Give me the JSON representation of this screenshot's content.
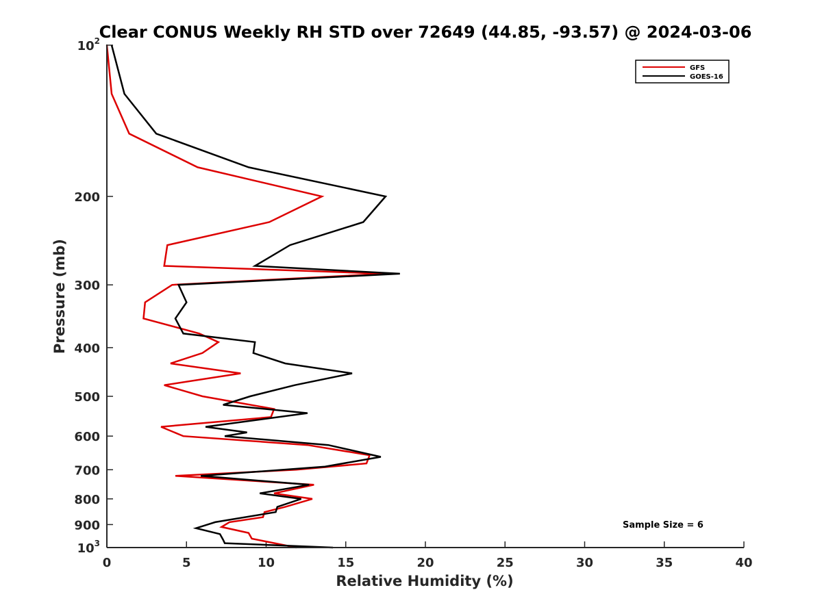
{
  "chart_data": {
    "type": "line",
    "title": "Clear CONUS Weekly RH STD over 72649 (44.85, -93.57) @ 2024-03-06",
    "xlabel": "Relative Humidity (%)",
    "ylabel": "Pressure (mb)",
    "xlim": [
      0,
      40
    ],
    "ylim": [
      100,
      1000
    ],
    "y_scale": "log",
    "y_reversed": true,
    "x_ticks": [
      "0",
      "5",
      "10",
      "15",
      "20",
      "25",
      "30",
      "35",
      "40"
    ],
    "y_ticks": [
      {
        "value": 100,
        "base": "10",
        "exp": "2"
      },
      {
        "value": 200,
        "label": "200"
      },
      {
        "value": 300,
        "label": "300"
      },
      {
        "value": 400,
        "label": "400"
      },
      {
        "value": 500,
        "label": "500"
      },
      {
        "value": 600,
        "label": "600"
      },
      {
        "value": 700,
        "label": "700"
      },
      {
        "value": 800,
        "label": "800"
      },
      {
        "value": 900,
        "label": "900"
      },
      {
        "value": 1000,
        "base": "10",
        "exp": "3"
      }
    ],
    "grid": false,
    "legend_position": "top-right",
    "annotation": "Sample Size = 6",
    "series": [
      {
        "name": "GFS",
        "color": "#dd0000",
        "points": [
          [
            0.0,
            100
          ],
          [
            0.3,
            125
          ],
          [
            1.4,
            150
          ],
          [
            5.7,
            175
          ],
          [
            13.5,
            200
          ],
          [
            10.2,
            225
          ],
          [
            3.8,
            250
          ],
          [
            3.6,
            275
          ],
          [
            17.5,
            285
          ],
          [
            4.1,
            300
          ],
          [
            2.4,
            325
          ],
          [
            2.3,
            350
          ],
          [
            5.8,
            375
          ],
          [
            7.0,
            390
          ],
          [
            6.0,
            410
          ],
          [
            4.0,
            430
          ],
          [
            8.4,
            450
          ],
          [
            3.6,
            475
          ],
          [
            6.0,
            500
          ],
          [
            10.5,
            530
          ],
          [
            10.3,
            550
          ],
          [
            3.4,
            575
          ],
          [
            4.8,
            600
          ],
          [
            12.6,
            625
          ],
          [
            16.5,
            655
          ],
          [
            16.3,
            680
          ],
          [
            11.9,
            700
          ],
          [
            4.3,
            720
          ],
          [
            13.0,
            750
          ],
          [
            10.5,
            780
          ],
          [
            12.9,
            800
          ],
          [
            11.2,
            830
          ],
          [
            9.9,
            850
          ],
          [
            9.8,
            870
          ],
          [
            7.7,
            890
          ],
          [
            7.2,
            910
          ],
          [
            8.9,
            935
          ],
          [
            9.1,
            960
          ],
          [
            11.9,
            1000
          ]
        ]
      },
      {
        "name": "GOES-16",
        "color": "#000000",
        "points": [
          [
            0.3,
            100
          ],
          [
            1.1,
            125
          ],
          [
            3.1,
            150
          ],
          [
            8.9,
            175
          ],
          [
            17.5,
            200
          ],
          [
            16.1,
            225
          ],
          [
            11.5,
            250
          ],
          [
            9.3,
            275
          ],
          [
            18.4,
            285
          ],
          [
            4.5,
            300
          ],
          [
            5.0,
            325
          ],
          [
            4.3,
            350
          ],
          [
            4.8,
            375
          ],
          [
            9.3,
            390
          ],
          [
            9.2,
            410
          ],
          [
            11.2,
            430
          ],
          [
            15.4,
            450
          ],
          [
            11.8,
            475
          ],
          [
            9.0,
            500
          ],
          [
            7.3,
            520
          ],
          [
            12.6,
            540
          ],
          [
            6.2,
            575
          ],
          [
            8.8,
            590
          ],
          [
            7.4,
            600
          ],
          [
            13.9,
            625
          ],
          [
            17.2,
            660
          ],
          [
            13.7,
            690
          ],
          [
            5.9,
            720
          ],
          [
            12.7,
            750
          ],
          [
            9.6,
            780
          ],
          [
            12.2,
            800
          ],
          [
            10.7,
            830
          ],
          [
            10.6,
            850
          ],
          [
            6.8,
            890
          ],
          [
            5.6,
            915
          ],
          [
            7.1,
            940
          ],
          [
            7.3,
            965
          ],
          [
            7.4,
            980
          ],
          [
            14.2,
            1000
          ]
        ]
      }
    ]
  }
}
